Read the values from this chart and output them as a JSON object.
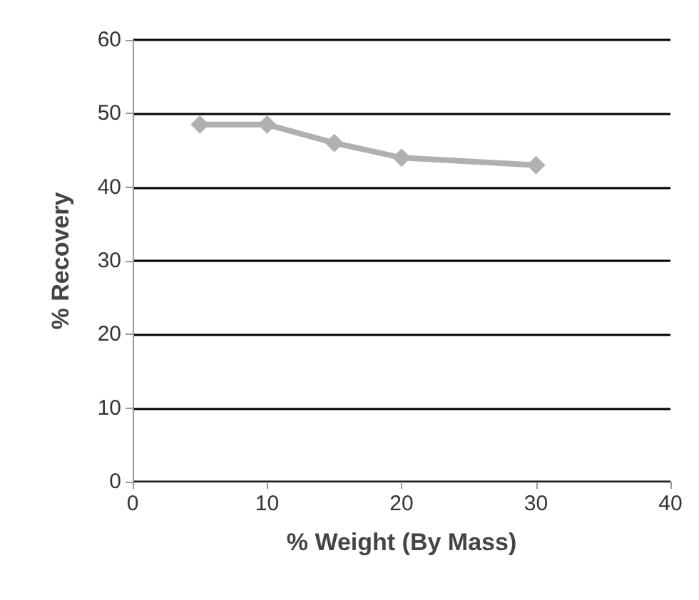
{
  "chart_data": {
    "type": "line",
    "xlabel": "% Weight (By Mass)",
    "ylabel": "% Recovery",
    "x": [
      5,
      10,
      15,
      20,
      30
    ],
    "series": [
      {
        "color": "#b0b0b0",
        "values": [
          48.5,
          48.5,
          46,
          44,
          43
        ]
      }
    ],
    "xlim": [
      0,
      40
    ],
    "xticks": [
      0,
      10,
      20,
      30,
      40
    ],
    "ylim": [
      0,
      60
    ],
    "yticks": [
      0,
      10,
      20,
      30,
      40,
      50,
      60
    ],
    "grid": "y",
    "marker": "diamond"
  }
}
